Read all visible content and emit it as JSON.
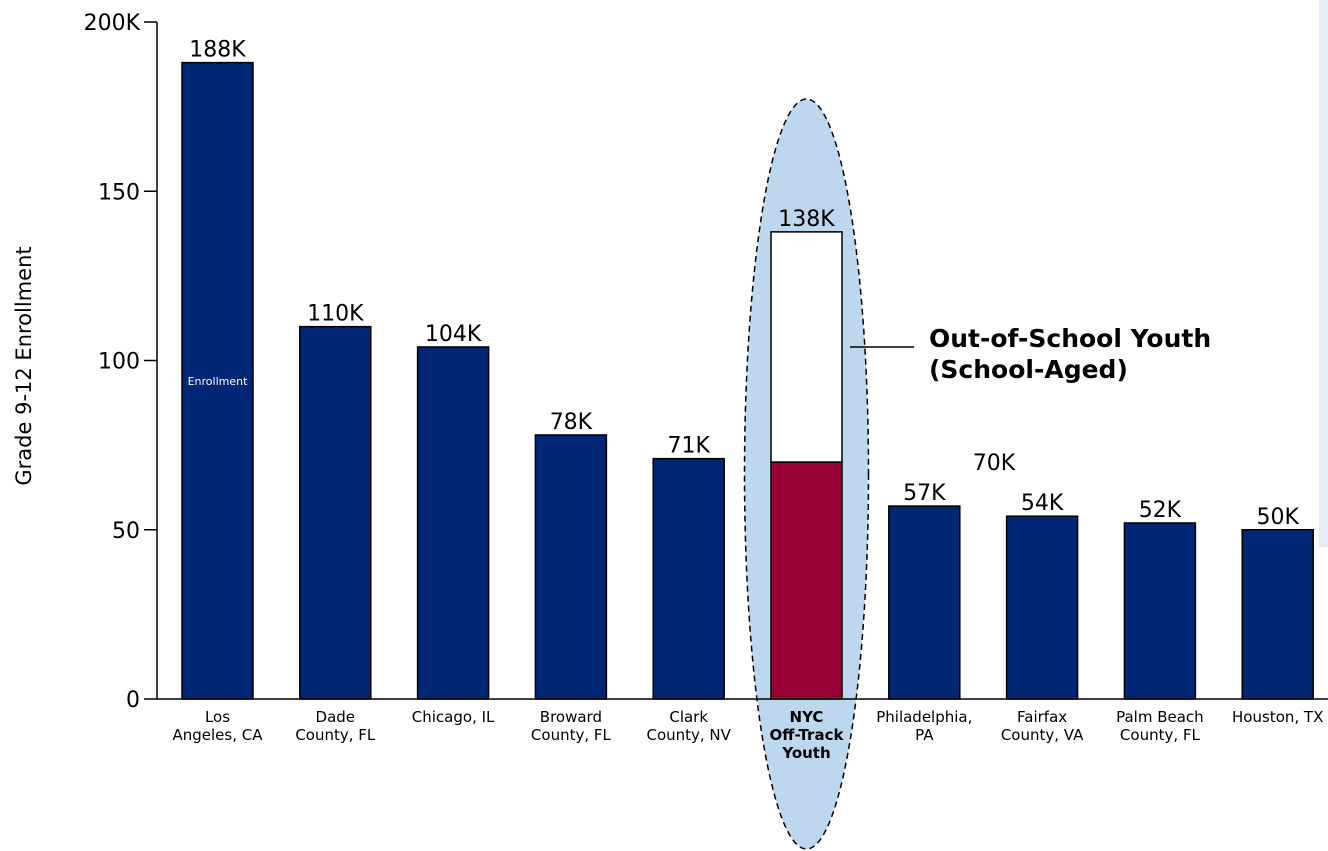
{
  "chart_data": {
    "type": "bar",
    "ylabel": "Grade 9-12 Enrollment",
    "ylim": [
      0,
      200
    ],
    "y_ticks": [
      {
        "value": 0,
        "label": "0"
      },
      {
        "value": 50,
        "label": "50"
      },
      {
        "value": 100,
        "label": "100"
      },
      {
        "value": 150,
        "label": "150"
      },
      {
        "value": 200,
        "label": "200K"
      }
    ],
    "categories": [
      [
        "Los",
        "Angeles, CA"
      ],
      [
        "Dade",
        "County, FL"
      ],
      [
        "Chicago, IL"
      ],
      [
        "Broward",
        "County, FL"
      ],
      [
        "Clark",
        "County, NV"
      ],
      [
        "NYC",
        "Off-Track",
        "Youth"
      ],
      [
        "Philadelphia,",
        "PA"
      ],
      [
        "Fairfax",
        "County, VA"
      ],
      [
        "Palm Beach",
        "County, FL"
      ],
      [
        "Houston, TX"
      ]
    ],
    "highlight_index": 5,
    "series": [
      {
        "name": "Enrollment",
        "values": [
          188,
          110,
          104,
          78,
          71,
          70,
          57,
          54,
          52,
          50
        ],
        "color": "#002776"
      },
      {
        "name": "Out-of-School Youth (School-Aged)",
        "values": [
          0,
          0,
          0,
          0,
          0,
          68,
          0,
          0,
          0,
          0
        ],
        "color": "#ffffff"
      }
    ],
    "highlight_color": "#990033",
    "ellipse_color": "#bdd7ee",
    "data_labels": [
      "188K",
      "110K",
      "104K",
      "78K",
      "71K",
      "138K",
      "57K",
      "54K",
      "52K",
      "50K"
    ],
    "inner_segment_label": "70K",
    "inside_bar_label": "Enrollment",
    "annotation": [
      "Out-of-School Youth",
      "(School-Aged)"
    ]
  }
}
